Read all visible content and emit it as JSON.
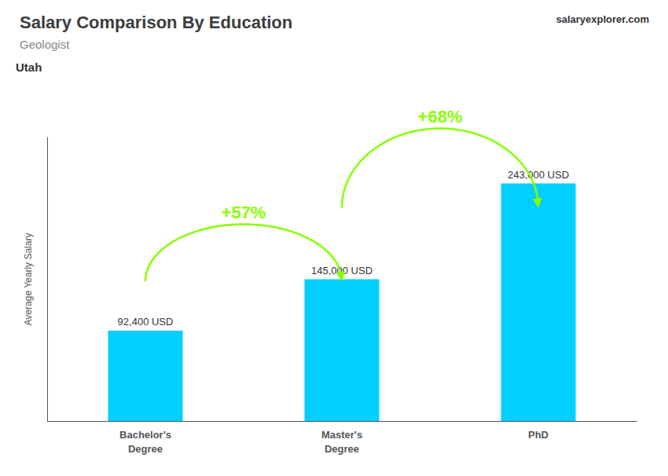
{
  "chart_data": {
    "type": "bar",
    "title": "Salary Comparison By Education",
    "subtitle": "Geologist",
    "categories": [
      "Bachelor's\nDegree",
      "Master's\nDegree",
      "PhD"
    ],
    "values": [
      92400,
      145000,
      243000
    ],
    "value_labels": [
      "92,400 USD",
      "145,000 USD",
      "243,000 USD"
    ],
    "data_labels": true,
    "color": "#00cfff",
    "ylabel": "Average Yearly Salary",
    "ylim": [
      0,
      290000
    ],
    "tick_labels": "x",
    "grid": false,
    "annotations": [
      {
        "text": "Utah"
      },
      {
        "text": "salaryexplorer.com"
      },
      {
        "text": "+57%",
        "from": "Bachelor's\nDegree",
        "to": "Master's\nDegree",
        "color": "#88ff00"
      },
      {
        "text": "+68%",
        "from": "Master's\nDegree",
        "to": "PhD",
        "color": "#88ff00"
      }
    ]
  }
}
